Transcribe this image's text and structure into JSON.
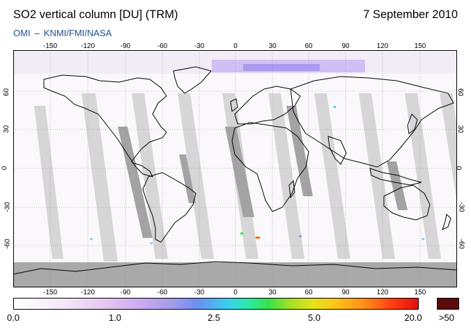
{
  "header": {
    "title": "SO2 vertical column [DU] (TRM)",
    "date": "7 September 2010",
    "source_a": "OMI",
    "source_dash": "–",
    "source_b": "KNMI/FMI/NASA"
  },
  "map": {
    "lon_labels": [
      "-150",
      "-120",
      "-90",
      "-60",
      "-30",
      "0",
      "30",
      "60",
      "90",
      "120",
      "150"
    ],
    "lat_labels": [
      "60",
      "30",
      "0",
      "-30",
      "-60"
    ],
    "lon_range": [
      -180,
      180
    ],
    "lat_range": [
      -90,
      90
    ],
    "gridlines": true,
    "colors": {
      "swath_gap_light": "#d6d6d6",
      "swath_gap_dark": "#9e9e9e",
      "polar_night": "#a9a9a9",
      "high_lat_enhancement": "#b8a6f2",
      "coastline": "#000000"
    }
  },
  "colorbar": {
    "labels": [
      "0.0",
      "1.0",
      "2.5",
      "5.0",
      "20.0",
      ">50"
    ],
    "gradient_colors": [
      "#ffffff",
      "#e6c9ef",
      "#9d9bea",
      "#3ad0ee",
      "#37e14a",
      "#e6e21b",
      "#ff8a1a",
      "#e01010"
    ],
    "over_color": "#5a0a0a"
  }
}
